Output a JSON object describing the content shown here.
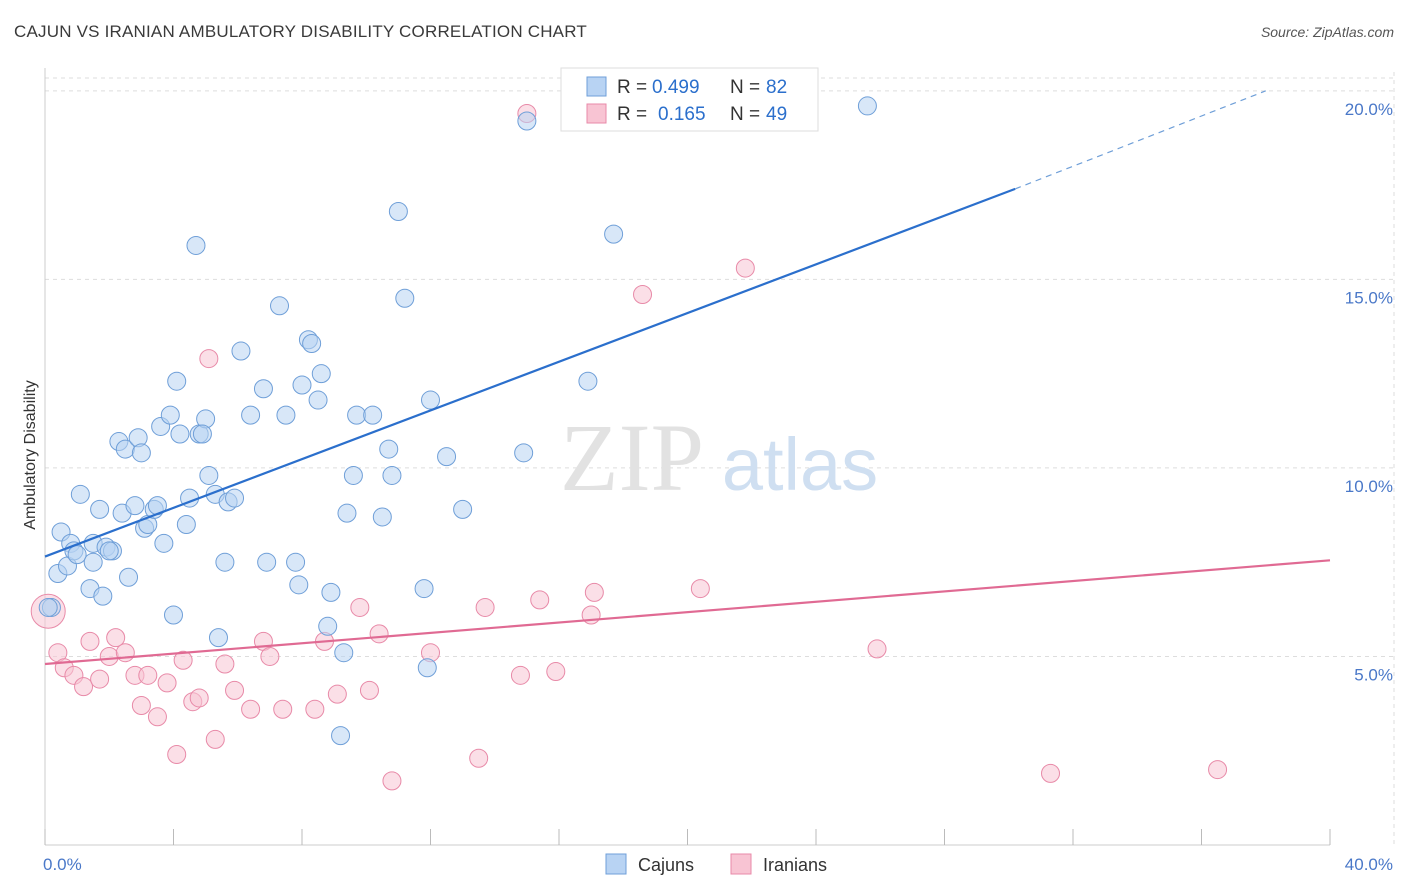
{
  "title": "CAJUN VS IRANIAN AMBULATORY DISABILITY CORRELATION CHART",
  "source": "Source: ZipAtlas.com",
  "watermark": {
    "zip": "ZIP",
    "atlas": "atlas"
  },
  "colors": {
    "cajun_fill": "#b8d3f3",
    "cajun_stroke": "#6f9fd8",
    "cajun_line": "#2b6fcc",
    "iranian_fill": "#f8c4d3",
    "iranian_stroke": "#e88aa8",
    "iranian_line": "#e06a93",
    "tick_text": "#4a78c8",
    "grid": "#dddddd"
  },
  "legend": {
    "rows": [
      {
        "r_label": "R =",
        "r_value": "0.499",
        "n_label": "N =",
        "n_value": "82"
      },
      {
        "r_label": "R =",
        "r_value": "0.165",
        "n_label": "N =",
        "n_value": "49"
      }
    ]
  },
  "chart_data": {
    "type": "scatter",
    "title": "CAJUN VS IRANIAN AMBULATORY DISABILITY CORRELATION CHART",
    "xlabel": "",
    "ylabel": "Ambulatory Disability",
    "xlim": [
      0,
      40
    ],
    "ylim": [
      0,
      20.5
    ],
    "x_tick_labels": [
      "0.0%",
      "40.0%"
    ],
    "y_ticks": [
      5,
      10,
      15,
      20
    ],
    "y_tick_labels": [
      "5.0%",
      "10.0%",
      "15.0%",
      "20.0%"
    ],
    "grid": true,
    "legend_position": "bottom-center",
    "series": [
      {
        "name": "Cajuns",
        "color": "#6f9fd8",
        "r": 0.499,
        "n": 82,
        "trend": {
          "x0": 0,
          "y0": 7.65,
          "x1": 30.2,
          "y1": 17.4,
          "dashed_to_x": 38.0,
          "dashed_to_y": 20.0
        },
        "points": [
          [
            0.2,
            6.3
          ],
          [
            0.4,
            7.2
          ],
          [
            0.5,
            8.3
          ],
          [
            0.7,
            7.4
          ],
          [
            0.8,
            8.0
          ],
          [
            0.9,
            7.8
          ],
          [
            1.0,
            7.7
          ],
          [
            1.1,
            9.3
          ],
          [
            1.4,
            6.8
          ],
          [
            1.5,
            7.5
          ],
          [
            1.5,
            8.0
          ],
          [
            1.7,
            8.9
          ],
          [
            1.8,
            6.6
          ],
          [
            1.9,
            7.9
          ],
          [
            2.1,
            7.8
          ],
          [
            2.3,
            10.7
          ],
          [
            2.4,
            8.8
          ],
          [
            2.5,
            10.5
          ],
          [
            2.6,
            7.1
          ],
          [
            2.8,
            9.0
          ],
          [
            2.9,
            10.8
          ],
          [
            3.0,
            10.4
          ],
          [
            3.1,
            8.4
          ],
          [
            3.2,
            8.5
          ],
          [
            3.4,
            8.9
          ],
          [
            3.5,
            9.0
          ],
          [
            3.6,
            11.1
          ],
          [
            3.7,
            8.0
          ],
          [
            3.9,
            11.4
          ],
          [
            4.0,
            6.1
          ],
          [
            4.1,
            12.3
          ],
          [
            4.2,
            10.9
          ],
          [
            4.4,
            8.5
          ],
          [
            4.5,
            9.2
          ],
          [
            4.7,
            15.9
          ],
          [
            4.8,
            10.9
          ],
          [
            5.0,
            11.3
          ],
          [
            5.1,
            9.8
          ],
          [
            5.3,
            9.3
          ],
          [
            5.4,
            5.5
          ],
          [
            5.6,
            7.5
          ],
          [
            5.7,
            9.1
          ],
          [
            5.9,
            9.2
          ],
          [
            6.1,
            13.1
          ],
          [
            6.4,
            11.4
          ],
          [
            6.8,
            12.1
          ],
          [
            6.9,
            7.5
          ],
          [
            7.3,
            14.3
          ],
          [
            7.5,
            11.4
          ],
          [
            7.8,
            7.5
          ],
          [
            7.9,
            6.9
          ],
          [
            8.0,
            12.2
          ],
          [
            8.2,
            13.4
          ],
          [
            8.3,
            13.3
          ],
          [
            8.5,
            11.8
          ],
          [
            8.6,
            12.5
          ],
          [
            8.8,
            5.8
          ],
          [
            8.9,
            6.7
          ],
          [
            9.2,
            2.9
          ],
          [
            9.3,
            5.1
          ],
          [
            9.4,
            8.8
          ],
          [
            9.6,
            9.8
          ],
          [
            9.7,
            11.4
          ],
          [
            10.2,
            11.4
          ],
          [
            10.5,
            8.7
          ],
          [
            10.7,
            10.5
          ],
          [
            10.8,
            9.8
          ],
          [
            11.0,
            16.8
          ],
          [
            11.2,
            14.5
          ],
          [
            11.8,
            6.8
          ],
          [
            11.9,
            4.7
          ],
          [
            12.0,
            11.8
          ],
          [
            12.5,
            10.3
          ],
          [
            13.0,
            8.9
          ],
          [
            14.9,
            10.4
          ],
          [
            15.0,
            19.2
          ],
          [
            16.9,
            12.3
          ],
          [
            17.7,
            16.2
          ],
          [
            25.6,
            19.6
          ],
          [
            0.1,
            6.3
          ],
          [
            2.0,
            7.8
          ],
          [
            4.9,
            10.9
          ]
        ]
      },
      {
        "name": "Iranians",
        "color": "#e88aa8",
        "r": 0.165,
        "n": 49,
        "trend": {
          "x0": 0,
          "y0": 4.8,
          "x1": 40,
          "y1": 7.55
        },
        "points": [
          [
            0.1,
            6.2
          ],
          [
            0.4,
            5.1
          ],
          [
            0.6,
            4.7
          ],
          [
            0.9,
            4.5
          ],
          [
            1.2,
            4.2
          ],
          [
            1.4,
            5.4
          ],
          [
            1.7,
            4.4
          ],
          [
            2.0,
            5.0
          ],
          [
            2.2,
            5.5
          ],
          [
            2.5,
            5.1
          ],
          [
            2.8,
            4.5
          ],
          [
            3.0,
            3.7
          ],
          [
            3.2,
            4.5
          ],
          [
            3.5,
            3.4
          ],
          [
            3.8,
            4.3
          ],
          [
            4.1,
            2.4
          ],
          [
            4.3,
            4.9
          ],
          [
            4.6,
            3.8
          ],
          [
            4.8,
            3.9
          ],
          [
            5.1,
            12.9
          ],
          [
            5.3,
            2.8
          ],
          [
            5.6,
            4.8
          ],
          [
            5.9,
            4.1
          ],
          [
            6.4,
            3.6
          ],
          [
            6.8,
            5.4
          ],
          [
            7.0,
            5.0
          ],
          [
            7.4,
            3.6
          ],
          [
            8.4,
            3.6
          ],
          [
            8.7,
            5.4
          ],
          [
            9.1,
            4.0
          ],
          [
            9.8,
            6.3
          ],
          [
            10.1,
            4.1
          ],
          [
            10.4,
            5.6
          ],
          [
            10.8,
            1.7
          ],
          [
            12.0,
            5.1
          ],
          [
            13.5,
            2.3
          ],
          [
            13.7,
            6.3
          ],
          [
            14.8,
            4.5
          ],
          [
            15.0,
            19.4
          ],
          [
            15.4,
            6.5
          ],
          [
            15.9,
            4.6
          ],
          [
            17.0,
            6.1
          ],
          [
            17.1,
            6.7
          ],
          [
            18.6,
            14.6
          ],
          [
            20.4,
            6.8
          ],
          [
            21.8,
            15.3
          ],
          [
            25.9,
            5.2
          ],
          [
            31.3,
            1.9
          ],
          [
            36.5,
            2.0
          ]
        ]
      }
    ]
  }
}
